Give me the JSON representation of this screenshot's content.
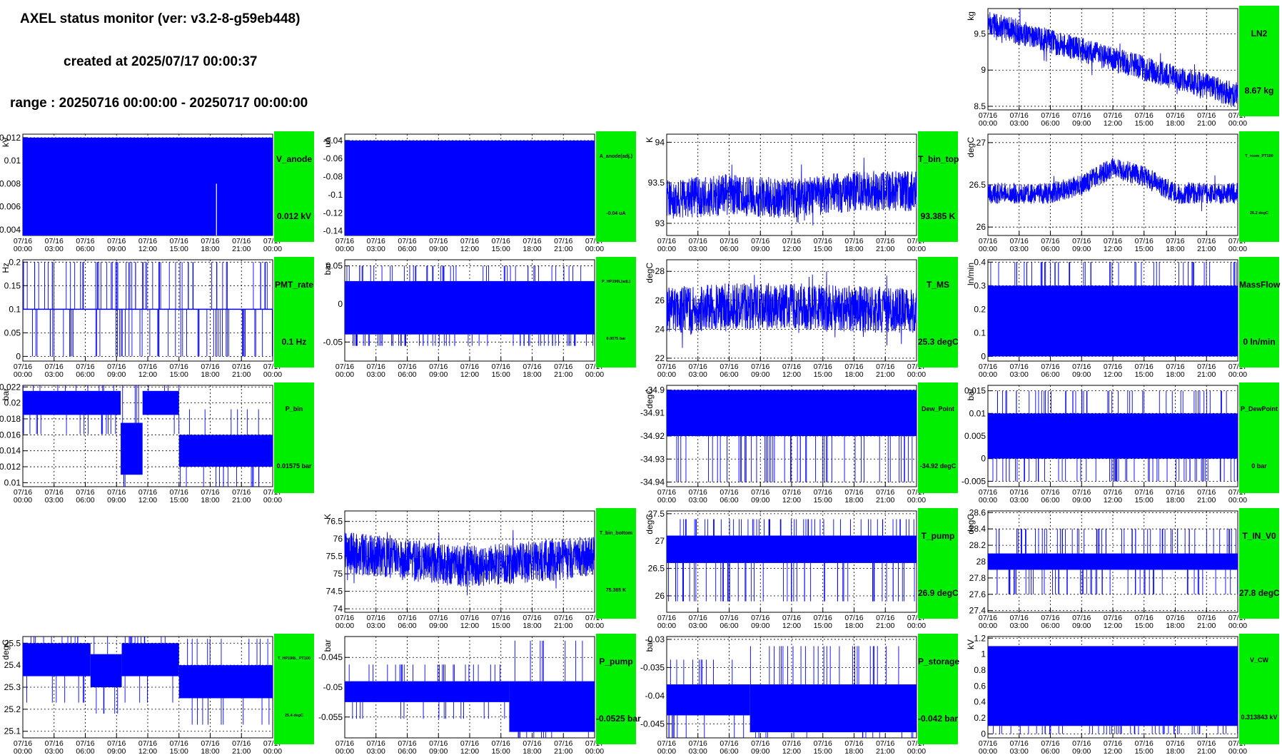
{
  "header": {
    "title": "AXEL status monitor (ver: v3.2-8-g59eb448)",
    "created": "created at 2025/07/17 00:00:37",
    "range": "range : 20250716 00:00:00 - 20250717 00:00:00"
  },
  "colors": {
    "series": "#0000ff",
    "status_box": "#00ee00"
  },
  "time_ticks": [
    "07/16 00:00",
    "07/16 03:00",
    "07/16 06:00",
    "07/16 09:00",
    "07/16 12:00",
    "07/16 15:00",
    "07/16 18:00",
    "07/16 21:00",
    "07/17 00:00"
  ],
  "chart_data": [
    {
      "id": "LN2",
      "type": "line",
      "unit": "kg",
      "ylim": [
        8.45,
        9.85
      ],
      "yticks": [
        "8.5",
        "9",
        "9.5"
      ],
      "ytick_values": [
        8.5,
        9,
        9.5
      ],
      "label": "LN2",
      "value": "8.67 kg",
      "style": "noisy",
      "noise": 0.35,
      "x": [
        0,
        6,
        12,
        18,
        24
      ],
      "y": [
        9.65,
        9.4,
        9.15,
        8.9,
        8.65
      ]
    },
    {
      "id": "V_anode",
      "type": "area",
      "unit": "kV",
      "ylim": [
        0.0035,
        0.0123
      ],
      "yticks": [
        "0.004",
        "0.006",
        "0.008",
        "0.01",
        "0.012"
      ],
      "ytick_values": [
        0.004,
        0.006,
        0.008,
        0.01,
        0.012
      ],
      "label": "V_anode",
      "value": "0.012 kV",
      "style": "fill",
      "band": [
        0.0035,
        0.012
      ],
      "x": [
        0,
        24
      ],
      "y": [
        0.012,
        0.012
      ]
    },
    {
      "id": "A_anode",
      "type": "area",
      "unit": "uA",
      "ylim": [
        -0.145,
        -0.033
      ],
      "yticks": [
        "-0.14",
        "-0.12",
        "-0.1",
        "-0.08",
        "-0.06",
        "-0.04"
      ],
      "ytick_values": [
        -0.14,
        -0.12,
        -0.1,
        -0.08,
        -0.06,
        -0.04
      ],
      "label": "A_anode(adj.)",
      "value": "-0.04 uA",
      "style": "fill",
      "band": [
        -0.145,
        -0.04
      ],
      "x": [
        0,
        24
      ],
      "y": [
        -0.04,
        -0.04
      ]
    },
    {
      "id": "T_bin_top",
      "type": "line",
      "unit": "K",
      "ylim": [
        92.85,
        94.1
      ],
      "yticks": [
        "93",
        "93.5",
        "94"
      ],
      "ytick_values": [
        93,
        93.5,
        94
      ],
      "label": "T_bin_top",
      "value": "93.385 K",
      "style": "noisy",
      "noise": 0.5,
      "x": [
        0,
        6,
        12,
        18,
        24
      ],
      "y": [
        93.3,
        93.35,
        93.3,
        93.4,
        93.4
      ]
    },
    {
      "id": "T_room",
      "type": "line",
      "unit": "degC",
      "ylim": [
        25.9,
        27.1
      ],
      "yticks": [
        "26",
        "26.5",
        "27"
      ],
      "ytick_values": [
        26,
        26.5,
        27
      ],
      "label": "T_room_PT100",
      "value": "26.2 degC",
      "style": "noisy",
      "noise": 0.25,
      "x": [
        0,
        6,
        9,
        12,
        15,
        18,
        24
      ],
      "y": [
        26.4,
        26.4,
        26.5,
        26.7,
        26.6,
        26.4,
        26.4
      ]
    },
    {
      "id": "PMT_rate",
      "type": "line",
      "unit": "Hz",
      "ylim": [
        -0.01,
        0.205
      ],
      "yticks": [
        "0",
        "0.05",
        "0.1",
        "0.15",
        "0.2"
      ],
      "ytick_values": [
        0,
        0.05,
        0.1,
        0.15,
        0.2
      ],
      "label": "PMT_rate",
      "value": "0.1 Hz",
      "style": "spikes",
      "base": 0.1,
      "spikeLo": 0,
      "spikeHi": 0.2,
      "x": [
        0,
        24
      ],
      "y": [
        0.1,
        0.1
      ]
    },
    {
      "id": "P_HP190L",
      "type": "line",
      "unit": "bar",
      "ylim": [
        -0.075,
        0.058
      ],
      "yticks": [
        "-0.05",
        "0",
        "0.05"
      ],
      "ytick_values": [
        -0.05,
        0,
        0.05
      ],
      "label": "P_HP190L(adj.)",
      "value": "0.0075 bar",
      "style": "fillspikes",
      "band": [
        -0.04,
        0.03
      ],
      "spikeLo": -0.055,
      "spikeHi": 0.05,
      "x": [
        0,
        24
      ],
      "y": [
        0.0075,
        0.0075
      ]
    },
    {
      "id": "T_MS",
      "type": "line",
      "unit": "degC",
      "ylim": [
        21.8,
        28.8
      ],
      "yticks": [
        "22",
        "24",
        "26",
        "28"
      ],
      "ytick_values": [
        22,
        24,
        26,
        28
      ],
      "label": "T_MS",
      "value": "25.3 degC",
      "style": "noisy",
      "noise": 3.2,
      "x": [
        0,
        6,
        12,
        18,
        24
      ],
      "y": [
        25.3,
        25.6,
        25.6,
        25.4,
        25.3
      ]
    },
    {
      "id": "MassFlow",
      "type": "line",
      "unit": "ln/min",
      "ylim": [
        -0.02,
        0.41
      ],
      "yticks": [
        "0",
        "0.1",
        "0.2",
        "0.3",
        "0.4"
      ],
      "ytick_values": [
        0,
        0.1,
        0.2,
        0.3,
        0.4
      ],
      "label": "MassFlow",
      "value": "0 ln/min",
      "style": "fillspikes",
      "band": [
        0,
        0.3
      ],
      "spikeLo": 0,
      "spikeHi": 0.4,
      "x": [
        0,
        24
      ],
      "y": [
        0,
        0
      ]
    },
    {
      "id": "P_bin",
      "type": "line",
      "unit": "bar",
      "ylim": [
        0.0095,
        0.0222
      ],
      "yticks": [
        "0.01",
        "0.012",
        "0.014",
        "0.016",
        "0.018",
        "0.02",
        "0.022"
      ],
      "ytick_values": [
        0.01,
        0.012,
        0.014,
        0.016,
        0.018,
        0.02,
        0.022
      ],
      "label": "P_bin",
      "value": "0.01575 bar",
      "style": "steps",
      "x": [
        0,
        9.4,
        11.5,
        15,
        24
      ],
      "y": [
        0.0185,
        0.011,
        0.0185,
        0.012,
        0.012
      ],
      "hi": [
        0.0215,
        0.0175,
        0.0215,
        0.016,
        0.016
      ]
    },
    {
      "id": "Dew_Point",
      "type": "line",
      "unit": "degC",
      "ylim": [
        -34.942,
        -34.898
      ],
      "yticks": [
        "-34.94",
        "-34.93",
        "-34.92",
        "-34.91",
        "-34.9"
      ],
      "ytick_values": [
        -34.94,
        -34.93,
        -34.92,
        -34.91,
        -34.9
      ],
      "label": "Dew_Point",
      "value": "-34.92 degC",
      "style": "fillspikes",
      "band": [
        -34.92,
        -34.9
      ],
      "spikeLo": -34.94,
      "spikeHi": -34.9,
      "x": [
        0,
        24
      ],
      "y": [
        -34.92,
        -34.92
      ]
    },
    {
      "id": "P_DewPoint",
      "type": "line",
      "unit": "bar",
      "ylim": [
        -0.0062,
        0.0162
      ],
      "yticks": [
        "-0.005",
        "0",
        "0.005",
        "0.01",
        "0.015"
      ],
      "ytick_values": [
        -0.005,
        0,
        0.005,
        0.01,
        0.015
      ],
      "label": "P_DewPoint",
      "value": "0 bar",
      "style": "fillspikes",
      "band": [
        0,
        0.01
      ],
      "spikeLo": -0.005,
      "spikeHi": 0.015,
      "x": [
        0,
        24
      ],
      "y": [
        0,
        0
      ]
    },
    {
      "id": "T_bin_bottom",
      "type": "line",
      "unit": "K",
      "ylim": [
        73.9,
        76.8
      ],
      "yticks": [
        "74",
        "74.5",
        "75",
        "75.5",
        "76",
        "76.5"
      ],
      "ytick_values": [
        74,
        74.5,
        75,
        75.5,
        76,
        76.5
      ],
      "label": "T_bin_bottom",
      "value": "75.365 K",
      "style": "noisy",
      "noise": 1.2,
      "x": [
        0,
        12,
        24
      ],
      "y": [
        75.6,
        75.2,
        75.5
      ]
    },
    {
      "id": "T_pump",
      "type": "line",
      "unit": "degC",
      "ylim": [
        25.7,
        27.55
      ],
      "yticks": [
        "26",
        "26.5",
        "27",
        "27.5"
      ],
      "ytick_values": [
        26,
        26.5,
        27,
        27.5
      ],
      "label": "T_pump",
      "value": "26.9 degC",
      "style": "fillspikes",
      "band": [
        26.6,
        27.1
      ],
      "spikeLo": 25.9,
      "spikeHi": 27.4,
      "x": [
        0,
        24
      ],
      "y": [
        26.9,
        26.9
      ]
    },
    {
      "id": "T_IN_V0",
      "type": "line",
      "unit": "degC",
      "ylim": [
        27.38,
        28.62
      ],
      "yticks": [
        "27.4",
        "27.6",
        "27.8",
        "28",
        "28.2",
        "28.4",
        "28.6"
      ],
      "ytick_values": [
        27.4,
        27.6,
        27.8,
        28,
        28.2,
        28.4,
        28.6
      ],
      "label": "T_IN_V0",
      "value": "27.8 degC",
      "style": "fillspikes",
      "band": [
        27.9,
        28.1
      ],
      "spikeLo": 27.6,
      "spikeHi": 28.4,
      "x": [
        0,
        24
      ],
      "y": [
        27.8,
        27.8
      ]
    },
    {
      "id": "T_HP190L",
      "type": "line",
      "unit": "degC",
      "ylim": [
        25.07,
        25.53
      ],
      "yticks": [
        "25.1",
        "25.2",
        "25.3",
        "25.4",
        "25.5"
      ],
      "ytick_values": [
        25.1,
        25.2,
        25.3,
        25.4,
        25.5
      ],
      "label": "T_HP190L_PT100",
      "value": "25.4 degC",
      "style": "steps",
      "x": [
        0,
        6.5,
        9.5,
        15,
        24
      ],
      "y": [
        25.35,
        25.3,
        25.35,
        25.25,
        25.3
      ],
      "hi": [
        25.5,
        25.45,
        25.5,
        25.4,
        25.4
      ]
    },
    {
      "id": "P_pump",
      "type": "line",
      "unit": "bar",
      "ylim": [
        -0.0585,
        -0.0415
      ],
      "yticks": [
        "-0.055",
        "-0.05",
        "-0.045"
      ],
      "ytick_values": [
        -0.055,
        -0.05,
        -0.045
      ],
      "label": "P_pump",
      "value": "-0.0525 bar",
      "style": "steps",
      "x": [
        0,
        15.8,
        24
      ],
      "y": [
        -0.0525,
        -0.0575,
        -0.0575
      ],
      "hi": [
        -0.049,
        -0.049,
        -0.049
      ]
    },
    {
      "id": "P_storage",
      "type": "line",
      "unit": "bar",
      "ylim": [
        -0.0475,
        -0.0295
      ],
      "yticks": [
        "-0.045",
        "-0.04",
        "-0.035",
        "-0.03"
      ],
      "ytick_values": [
        -0.045,
        -0.04,
        -0.035,
        -0.03
      ],
      "label": "P_storage",
      "value": "-0.042 bar",
      "style": "steps",
      "x": [
        0,
        8,
        24
      ],
      "y": [
        -0.0435,
        -0.0465,
        -0.0465
      ],
      "hi": [
        -0.038,
        -0.038,
        -0.038
      ]
    },
    {
      "id": "V_CW",
      "type": "line",
      "unit": "kV",
      "ylim": [
        -0.05,
        1.22
      ],
      "yticks": [
        "0",
        "0.2",
        "0.4",
        "0.6",
        "0.8",
        "1",
        "1.2"
      ],
      "ytick_values": [
        0,
        0.2,
        0.4,
        0.6,
        0.8,
        1,
        1.2
      ],
      "label": "V_CW",
      "value": "0.313843 kV",
      "style": "fillspikes",
      "band": [
        0.1,
        1.1
      ],
      "spikeLo": 0,
      "spikeHi": 1.1,
      "x": [
        0,
        24
      ],
      "y": [
        0.31,
        0.31
      ]
    }
  ]
}
